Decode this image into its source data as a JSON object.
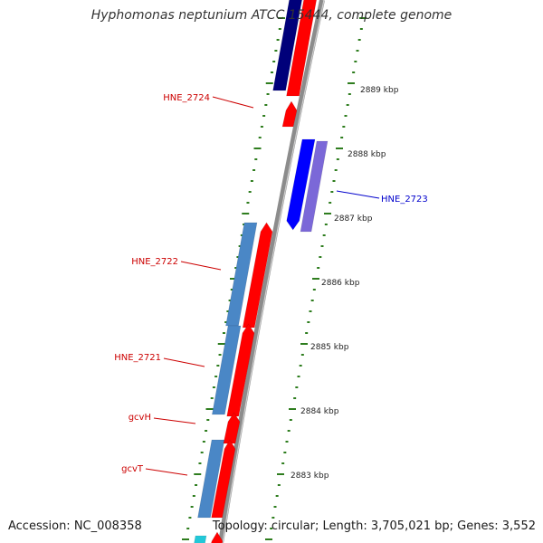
{
  "title": "Hyphomonas neptunium ATCC 15444, complete genome",
  "accession": "Accession: NC_008358",
  "summary": "Topology: circular; Length: 3,705,021 bp; Genes: 3,552",
  "colors": {
    "backbone": "#8c8c8c",
    "tick": "#2e7d1e",
    "label_red": "#cc0000",
    "label_blue": "#0000cc",
    "gene_red": "#ff0000",
    "gene_navy": "#00007a",
    "gene_blue": "#0000ff",
    "gene_violet": "#7b68d8",
    "gene_steel": "#4a87c6",
    "gene_cyan": "#22c8d8"
  },
  "scale_labels": [
    {
      "text": "2889 kbp",
      "kbp": 2889
    },
    {
      "text": "2888 kbp",
      "kbp": 2888
    },
    {
      "text": "2887 kbp",
      "kbp": 2887
    },
    {
      "text": "2886 kbp",
      "kbp": 2886
    },
    {
      "text": "2885 kbp",
      "kbp": 2885
    },
    {
      "text": "2884 kbp",
      "kbp": 2884
    },
    {
      "text": "2883 kbp",
      "kbp": 2883
    }
  ],
  "gene_labels": [
    {
      "text": "HNE_2724",
      "strand": "forward"
    },
    {
      "text": "HNE_2723",
      "strand": "reverse"
    },
    {
      "text": "HNE_2722",
      "strand": "forward"
    },
    {
      "text": "HNE_2721",
      "strand": "forward"
    },
    {
      "text": "gcvH",
      "strand": "forward"
    },
    {
      "text": "gcvT",
      "strand": "forward"
    }
  ]
}
